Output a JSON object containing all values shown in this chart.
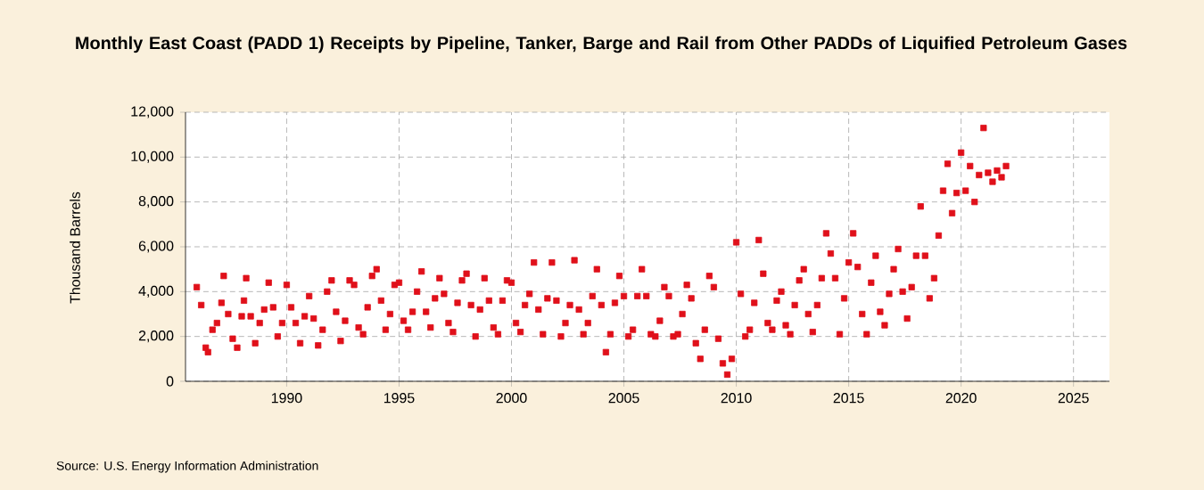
{
  "chart_data": {
    "type": "scatter",
    "title": "Monthly East Coast (PADD 1) Receipts by Pipeline, Tanker, Barge and Rail from Other PADDs of Liquified Petroleum Gases",
    "ylabel": "Thousand Barrels",
    "annotations": [
      "Source: U.S. Energy Information Administration"
    ],
    "xlim": [
      1985.5,
      2026.6
    ],
    "xticks": [
      1990,
      1995,
      2000,
      2005,
      2010,
      2015,
      2020,
      2025
    ],
    "ylim": [
      0,
      12000
    ],
    "yticks": [
      {
        "value": 0,
        "label": "0"
      },
      {
        "value": 2000,
        "label": "2,000"
      },
      {
        "value": 4000,
        "label": "4,000"
      },
      {
        "value": 6000,
        "label": "6,000"
      },
      {
        "value": 8000,
        "label": "8,000"
      },
      {
        "value": 10000,
        "label": "10,000"
      },
      {
        "value": 12000,
        "label": "12,000"
      }
    ],
    "grid": true,
    "marker": "square",
    "series": [
      {
        "color": "#e0101a",
        "x": [
          1986.0,
          1986.2,
          1986.4,
          1986.5,
          1986.7,
          1986.9,
          1987.1,
          1987.2,
          1987.4,
          1987.6,
          1987.8,
          1988.0,
          1988.1,
          1988.2,
          1988.4,
          1988.6,
          1988.8,
          1989.0,
          1989.2,
          1989.4,
          1989.6,
          1989.8,
          1990.0,
          1990.2,
          1990.4,
          1990.6,
          1990.8,
          1991.0,
          1991.2,
          1991.4,
          1991.6,
          1991.8,
          1992.0,
          1992.2,
          1992.4,
          1992.6,
          1992.8,
          1993.0,
          1993.2,
          1993.4,
          1993.6,
          1993.8,
          1994.0,
          1994.2,
          1994.4,
          1994.6,
          1994.8,
          1995.0,
          1995.2,
          1995.4,
          1995.6,
          1995.8,
          1996.0,
          1996.2,
          1996.4,
          1996.6,
          1996.8,
          1997.0,
          1997.2,
          1997.4,
          1997.6,
          1997.8,
          1998.0,
          1998.2,
          1998.4,
          1998.6,
          1998.8,
          1999.0,
          1999.2,
          1999.4,
          1999.6,
          1999.8,
          2000.0,
          2000.2,
          2000.4,
          2000.6,
          2000.8,
          2001.0,
          2001.2,
          2001.4,
          2001.6,
          2001.8,
          2002.0,
          2002.2,
          2002.4,
          2002.6,
          2002.8,
          2003.0,
          2003.2,
          2003.4,
          2003.6,
          2003.8,
          2004.0,
          2004.2,
          2004.4,
          2004.6,
          2004.8,
          2005.0,
          2005.2,
          2005.4,
          2005.6,
          2005.8,
          2006.0,
          2006.2,
          2006.4,
          2006.6,
          2006.8,
          2007.0,
          2007.2,
          2007.4,
          2007.6,
          2007.8,
          2008.0,
          2008.2,
          2008.4,
          2008.6,
          2008.8,
          2009.0,
          2009.2,
          2009.4,
          2009.6,
          2009.8,
          2010.0,
          2010.2,
          2010.4,
          2010.6,
          2010.8,
          2011.0,
          2011.2,
          2011.4,
          2011.6,
          2011.8,
          2012.0,
          2012.2,
          2012.4,
          2012.6,
          2012.8,
          2013.0,
          2013.2,
          2013.4,
          2013.6,
          2013.8,
          2014.0,
          2014.2,
          2014.4,
          2014.6,
          2014.8,
          2015.0,
          2015.2,
          2015.4,
          2015.6,
          2015.8,
          2016.0,
          2016.2,
          2016.4,
          2016.6,
          2016.8,
          2017.0,
          2017.2,
          2017.4,
          2017.6,
          2017.8,
          2018.0,
          2018.2,
          2018.4,
          2018.6,
          2018.8,
          2019.0,
          2019.2,
          2019.4,
          2019.6,
          2019.8,
          2020.0,
          2020.2,
          2020.4,
          2020.6,
          2020.8,
          2021.0,
          2021.2,
          2021.4,
          2021.6,
          2021.8,
          2022.0
        ],
        "values": [
          4200,
          3400,
          1500,
          1300,
          2300,
          2600,
          3500,
          4700,
          3000,
          1900,
          1500,
          2900,
          3600,
          4600,
          2900,
          1700,
          2600,
          3200,
          4400,
          3300,
          2000,
          2600,
          4300,
          3300,
          2600,
          1700,
          2900,
          3800,
          2800,
          1600,
          2300,
          4000,
          4500,
          3100,
          1800,
          2700,
          4500,
          4300,
          2400,
          2100,
          3300,
          4700,
          5000,
          3600,
          2300,
          3000,
          4300,
          4400,
          2700,
          2300,
          3100,
          4000,
          4900,
          3100,
          2400,
          3700,
          4600,
          3900,
          2600,
          2200,
          3500,
          4500,
          4800,
          3400,
          2000,
          3200,
          4600,
          3600,
          2400,
          2100,
          3600,
          4500,
          4400,
          2600,
          2200,
          3400,
          3900,
          5300,
          3200,
          2100,
          3700,
          5300,
          3600,
          2000,
          2600,
          3400,
          5400,
          3200,
          2100,
          2600,
          3800,
          5000,
          3400,
          1300,
          2100,
          3500,
          4700,
          3800,
          2000,
          2300,
          3800,
          5000,
          3800,
          2100,
          2000,
          2700,
          4200,
          3800,
          2000,
          2100,
          3000,
          4300,
          3700,
          1700,
          1000,
          2300,
          4700,
          4200,
          1900,
          800,
          300,
          1000,
          6200,
          3900,
          2000,
          2300,
          3500,
          6300,
          4800,
          2600,
          2300,
          3600,
          4000,
          2500,
          2100,
          3400,
          4500,
          5000,
          3000,
          2200,
          3400,
          4600,
          6600,
          5700,
          4600,
          2100,
          3700,
          5300,
          6600,
          5100,
          3000,
          2100,
          4400,
          5600,
          3100,
          2500,
          3900,
          5000,
          5900,
          4000,
          2800,
          4200,
          5600,
          7800,
          5600,
          3700,
          4600,
          6500,
          8500,
          9700,
          7500,
          8400,
          10200,
          8500,
          9600,
          8000,
          9200,
          11300,
          9300,
          8900,
          9400,
          9100,
          9600
        ]
      }
    ]
  }
}
